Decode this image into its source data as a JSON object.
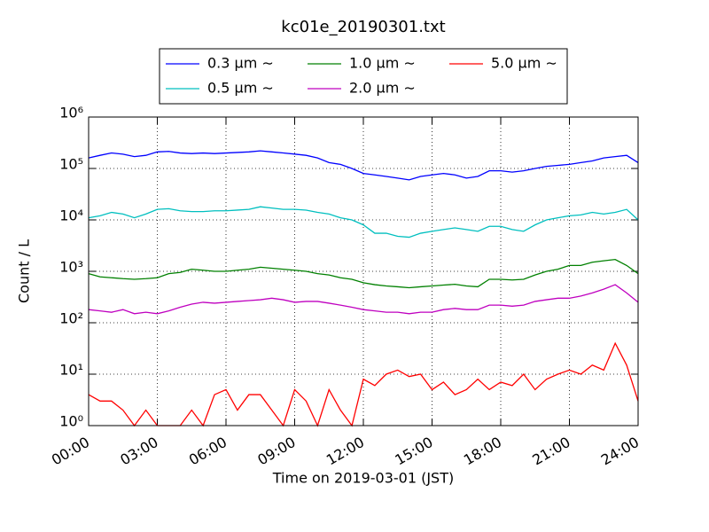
{
  "chart_data": {
    "type": "line",
    "title": "kc01e_20190301.txt",
    "x_label": "Time on 2019-03-01 (JST)",
    "y_label": "Count / L",
    "log_y": true,
    "grid": true,
    "xlim": [
      0,
      24
    ],
    "xticks": [
      {
        "value": 0,
        "label": "00:00"
      },
      {
        "value": 3,
        "label": "03:00"
      },
      {
        "value": 6,
        "label": "06:00"
      },
      {
        "value": 9,
        "label": "09:00"
      },
      {
        "value": 12,
        "label": "12:00"
      },
      {
        "value": 15,
        "label": "15:00"
      },
      {
        "value": 18,
        "label": "18:00"
      },
      {
        "value": 21,
        "label": "21:00"
      },
      {
        "value": 24,
        "label": "24:00"
      }
    ],
    "ylim": [
      1,
      1000000
    ],
    "yticks": [
      {
        "value": 1,
        "label": "10⁰"
      },
      {
        "value": 10,
        "label": "10¹"
      },
      {
        "value": 100,
        "label": "10²"
      },
      {
        "value": 1000,
        "label": "10³"
      },
      {
        "value": 10000,
        "label": "10⁴"
      },
      {
        "value": 100000,
        "label": "10⁵"
      },
      {
        "value": 1000000,
        "label": "10⁶"
      }
    ],
    "x": [
      0,
      0.5,
      1,
      1.5,
      2,
      2.5,
      3,
      3.5,
      4,
      4.5,
      5,
      5.5,
      6,
      6.5,
      7,
      7.5,
      8,
      8.5,
      9,
      9.5,
      10,
      10.5,
      11,
      11.5,
      12,
      12.5,
      13,
      13.5,
      14,
      14.5,
      15,
      15.5,
      16,
      16.5,
      17,
      17.5,
      18,
      18.5,
      19,
      19.5,
      20,
      20.5,
      21,
      21.5,
      22,
      22.5,
      23,
      23.5,
      24
    ],
    "series": [
      {
        "name": "0.3 μm ∼",
        "color": "#0000ff",
        "values": [
          160000,
          180000,
          200000,
          190000,
          170000,
          180000,
          210000,
          215000,
          200000,
          195000,
          200000,
          195000,
          200000,
          205000,
          210000,
          220000,
          210000,
          200000,
          190000,
          180000,
          160000,
          130000,
          120000,
          100000,
          80000,
          75000,
          70000,
          65000,
          60000,
          70000,
          75000,
          80000,
          75000,
          65000,
          70000,
          90000,
          90000,
          85000,
          90000,
          100000,
          110000,
          115000,
          120000,
          130000,
          140000,
          160000,
          170000,
          180000,
          130000
        ]
      },
      {
        "name": "0.5 μm ∼",
        "color": "#00bfbf",
        "values": [
          11000,
          12000,
          14000,
          13000,
          11000,
          13000,
          16000,
          16500,
          15000,
          14500,
          14500,
          15000,
          15000,
          15500,
          16000,
          18000,
          17000,
          16000,
          16000,
          15500,
          14000,
          13000,
          11000,
          10000,
          8000,
          5500,
          5500,
          4800,
          4600,
          5500,
          6000,
          6500,
          7000,
          6500,
          6000,
          7500,
          7500,
          6500,
          6000,
          8000,
          10000,
          11000,
          12000,
          12500,
          14000,
          13000,
          14000,
          16000,
          10000
        ]
      },
      {
        "name": "1.0 μm ∼",
        "color": "#008000",
        "values": [
          900,
          780,
          750,
          720,
          700,
          720,
          750,
          900,
          950,
          1100,
          1050,
          1000,
          1000,
          1050,
          1100,
          1200,
          1150,
          1100,
          1050,
          1000,
          900,
          850,
          750,
          700,
          600,
          550,
          520,
          500,
          480,
          500,
          520,
          540,
          560,
          520,
          500,
          700,
          700,
          680,
          700,
          850,
          1000,
          1100,
          1300,
          1300,
          1500,
          1600,
          1700,
          1300,
          900
        ]
      },
      {
        "name": "2.0 μm ∼",
        "color": "#bf00bf",
        "values": [
          180,
          170,
          160,
          180,
          150,
          160,
          150,
          170,
          200,
          230,
          250,
          240,
          250,
          260,
          270,
          280,
          300,
          280,
          250,
          260,
          260,
          240,
          220,
          200,
          180,
          170,
          160,
          160,
          150,
          160,
          160,
          180,
          190,
          180,
          180,
          220,
          220,
          210,
          220,
          260,
          280,
          300,
          300,
          330,
          380,
          450,
          550,
          380,
          250
        ]
      },
      {
        "name": "5.0 μm ∼",
        "color": "#ff0000",
        "values": [
          4,
          3,
          3,
          2,
          1,
          2,
          1,
          1,
          1,
          2,
          1,
          4,
          5,
          2,
          4,
          4,
          2,
          1,
          5,
          3,
          1,
          5,
          2,
          1,
          8,
          6,
          10,
          12,
          9,
          10,
          5,
          7,
          4,
          5,
          8,
          5,
          7,
          6,
          10,
          5,
          8,
          10,
          12,
          10,
          15,
          12,
          40,
          15,
          3
        ]
      }
    ]
  }
}
